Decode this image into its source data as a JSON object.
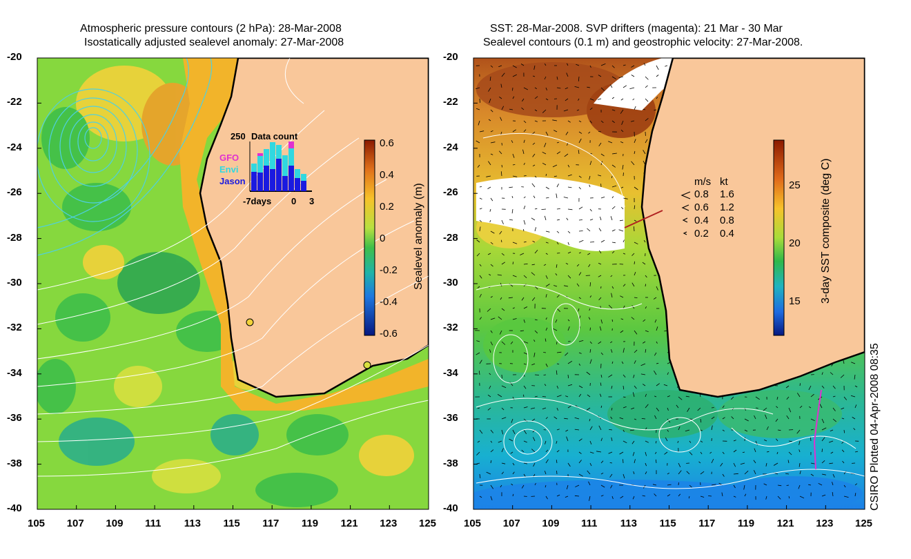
{
  "left_panel": {
    "title_line1": "Atmospheric pressure contours (2 hPa): 28-Mar-2008",
    "title_line2": "Isostatically adjusted sealevel anomaly: 27-Mar-2008",
    "colorbar": {
      "label": "Sealevel anomaly (m)",
      "ticks": [
        "0.6",
        "0.4",
        "0.2",
        "0",
        "-0.2",
        "-0.4",
        "-0.6"
      ]
    },
    "inset": {
      "title": "Data count",
      "max_label": "250",
      "series": [
        "GFO",
        "Envi",
        "Jason"
      ],
      "x_labels": [
        "-7days",
        "0",
        "3"
      ]
    }
  },
  "right_panel": {
    "title_line1": "SST: 28-Mar-2008. SVP drifters (magenta): 21 Mar - 30 Mar",
    "title_line2": "Sealevel contours (0.1 m) and geostrophic velocity: 27-Mar-2008.",
    "colorbar": {
      "label": "3-day SST composite (deg C)",
      "ticks": [
        "25",
        "20",
        "15"
      ]
    },
    "speed_legend": {
      "header_ms": "m/s",
      "header_kt": "kt",
      "rows": [
        {
          "ms": "0.8",
          "kt": "1.6"
        },
        {
          "ms": "0.6",
          "kt": "1.2"
        },
        {
          "ms": "0.4",
          "kt": "0.8"
        },
        {
          "ms": "0.2",
          "kt": "0.4"
        }
      ]
    }
  },
  "axes": {
    "lat_labels": [
      "-20",
      "-22",
      "-24",
      "-26",
      "-28",
      "-30",
      "-32",
      "-34",
      "-36",
      "-38",
      "-40"
    ],
    "lon_labels": [
      "105",
      "107",
      "109",
      "111",
      "113",
      "115",
      "117",
      "119",
      "121",
      "123",
      "125"
    ]
  },
  "credit": "CSIRO Plotted 04-Apr-2008 08:35",
  "colors": {
    "land": "#F9C79A",
    "ocean_green": "#7ED63A",
    "coast": "#000000"
  }
}
